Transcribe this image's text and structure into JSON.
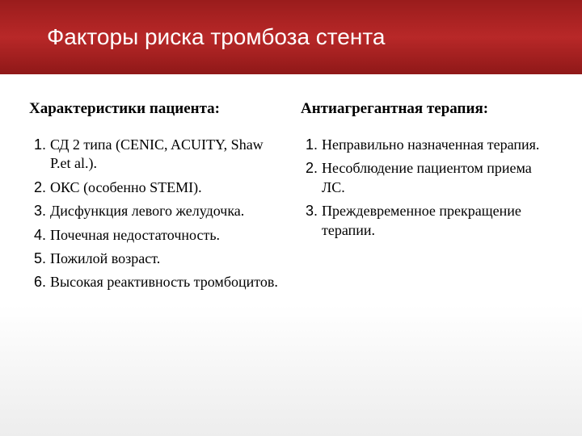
{
  "header": {
    "title": "Факторы риска тромбоза стента",
    "background_gradient": [
      "#9a1c1c",
      "#b82828",
      "#8f1818"
    ],
    "title_color": "#ffffff",
    "title_fontsize": 28
  },
  "columns": [
    {
      "heading": "Характеристики пациента:",
      "items": [
        "СД 2 типа (CENIC, ACUITY, Shaw P.et al.).",
        "ОКС (особенно STEMI).",
        "Дисфункция левого желудочка.",
        "Почечная недостаточность.",
        "Пожилой возраст.",
        "Высокая реактивность тромбоцитов."
      ]
    },
    {
      "heading": "Антиагрегантная терапия:",
      "items": [
        "Неправильно назначенная терапия.",
        "Несоблюдение пациентом приема ЛС.",
        "Преждевременное прекращение терапии."
      ]
    }
  ],
  "body_background": "#ffffff",
  "text_color": "#000000",
  "heading_fontsize": 19,
  "item_fontsize": 18
}
